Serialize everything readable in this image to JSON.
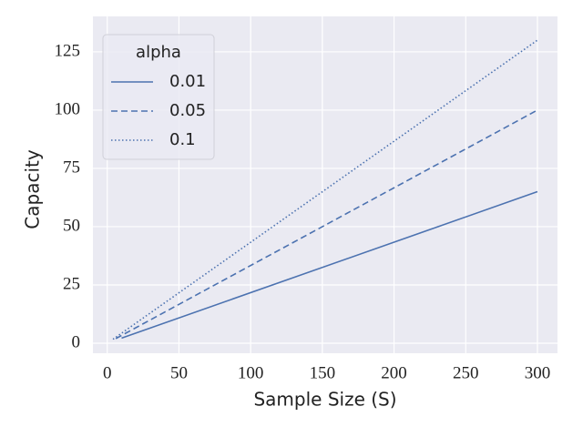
{
  "chart_data": {
    "type": "line",
    "xlabel": "Sample Size (S)",
    "ylabel": "Capacity",
    "legend_title": "alpha",
    "legend_loc": "upper left",
    "series": [
      {
        "name": "0.01",
        "color": "#4c72b0",
        "style": "solid",
        "x": [
          10,
          300
        ],
        "values": [
          2.2,
          65
        ]
      },
      {
        "name": "0.05",
        "color": "#4c72b0",
        "style": "dashed",
        "x": [
          6,
          300
        ],
        "values": [
          2,
          100
        ]
      },
      {
        "name": "0.1",
        "color": "#4c72b0",
        "style": "dotted",
        "x": [
          4,
          300
        ],
        "values": [
          1.7,
          130
        ]
      }
    ],
    "xlim": [
      -10,
      314
    ],
    "ylim": [
      -4.3,
      140.2
    ],
    "xticks": [
      0,
      50,
      100,
      150,
      200,
      250,
      300
    ],
    "yticks": [
      0,
      25,
      50,
      75,
      100,
      125
    ],
    "grid": true
  }
}
